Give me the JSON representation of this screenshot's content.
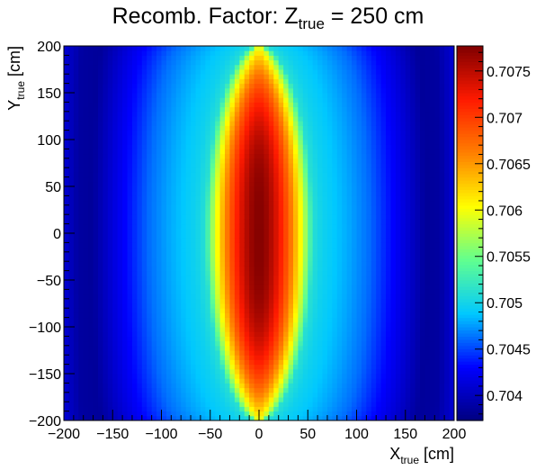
{
  "chart_data": {
    "type": "heatmap",
    "title": {
      "prefix": "Recomb. Factor:   Z",
      "subscript": "true",
      "suffix": " = 250 cm"
    },
    "xlabel": {
      "main": "X",
      "subscript": "true",
      "unit": " [cm]"
    },
    "ylabel": {
      "main": "Y",
      "subscript": "true",
      "unit": " [cm]"
    },
    "xlim": [
      -200,
      200
    ],
    "ylim": [
      -200,
      200
    ],
    "x_ticks": [
      -200,
      -150,
      -100,
      -50,
      0,
      50,
      100,
      150,
      200
    ],
    "x_tick_labels": [
      "−200",
      "−150",
      "−100",
      "−50",
      "0",
      "50",
      "100",
      "150",
      "200"
    ],
    "y_ticks": [
      -200,
      -150,
      -100,
      -50,
      0,
      50,
      100,
      150,
      200
    ],
    "y_tick_labels": [
      "−200",
      "−150",
      "−100",
      "−50",
      "0",
      "50",
      "100",
      "150",
      "200"
    ],
    "zlim": [
      0.70373,
      0.70777
    ],
    "z_ticks": [
      0.704,
      0.7045,
      0.705,
      0.7055,
      0.706,
      0.7065,
      0.707,
      0.7075
    ],
    "z_tick_labels": [
      "0.704",
      "0.7045",
      "0.705",
      "0.7055",
      "0.706",
      "0.7065",
      "0.707",
      "0.7075"
    ],
    "colormap": [
      "#00007f",
      "#0000ff",
      "#00c8ff",
      "#60ff90",
      "#ffff00",
      "#ff8000",
      "#ff1a00",
      "#800000"
    ],
    "grid": false,
    "bins": {
      "nx": 80,
      "ny": 80
    },
    "profile": {
      "x_samples": [
        0,
        10,
        20,
        30,
        40,
        50,
        60,
        75,
        90,
        110,
        130,
        150,
        170,
        185,
        200
      ],
      "z_at_center_row": [
        0.70775,
        0.70745,
        0.70688,
        0.70618,
        0.70548,
        0.70512,
        0.70498,
        0.70488,
        0.70478,
        0.70462,
        0.70437,
        0.70412,
        0.70385,
        0.70388,
        0.70412
      ],
      "z_at_top_edge_center": 0.706
    }
  }
}
